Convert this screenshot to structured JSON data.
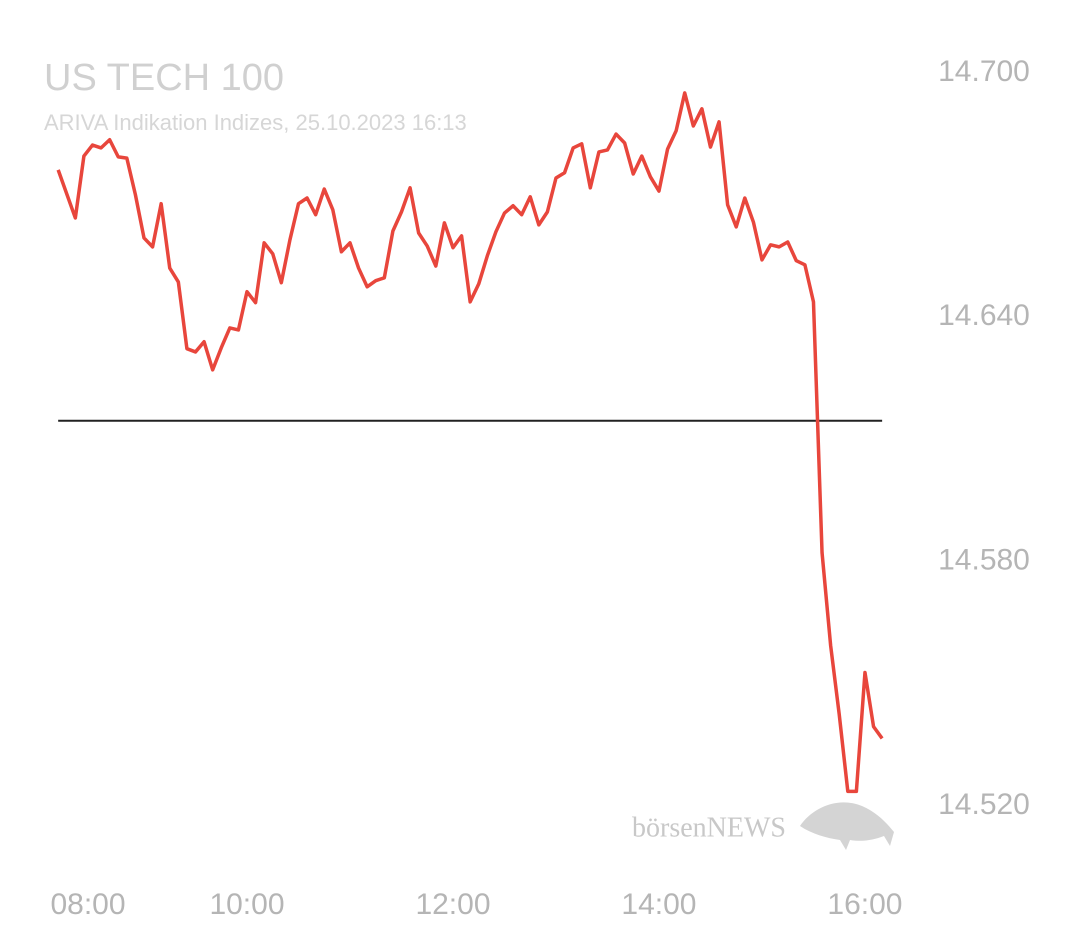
{
  "chart_data": {
    "type": "line",
    "title": "US TECH 100",
    "subtitle": "ARIVA Indikation Indizes, 25.10.2023 16:13",
    "watermark": "börsenNEWS",
    "x": [
      490,
      500,
      505,
      510,
      515,
      520,
      525,
      530,
      535,
      540,
      545,
      550,
      555,
      560,
      565,
      570,
      575,
      580,
      585,
      590,
      595,
      600,
      605,
      610,
      615,
      620,
      625,
      630,
      635,
      640,
      645,
      650,
      655,
      660,
      665,
      670,
      675,
      680,
      685,
      690,
      695,
      700,
      705,
      710,
      715,
      720,
      725,
      730,
      735,
      740,
      745,
      750,
      755,
      760,
      765,
      770,
      775,
      780,
      785,
      790,
      795,
      800,
      805,
      810,
      815,
      820,
      825,
      830,
      835,
      840,
      845,
      850,
      855,
      860,
      865,
      870,
      875,
      880,
      885,
      890,
      895,
      900,
      905,
      910,
      915,
      920,
      925,
      930,
      935,
      940,
      945,
      950,
      955,
      960,
      965,
      970
    ],
    "series": [
      {
        "name": "US TECH 100",
        "color": "#e8463c",
        "values": [
          14676.2,
          14664.4,
          14679.6,
          14682.3,
          14681.6,
          14683.6,
          14679.4,
          14679.1,
          14670.1,
          14659.5,
          14657.3,
          14667.9,
          14652.1,
          14648.7,
          14632.3,
          14631.5,
          14634.0,
          14627.1,
          14632.5,
          14637.4,
          14636.9,
          14646.3,
          14643.6,
          14658.3,
          14655.6,
          14648.5,
          14659.0,
          14667.9,
          14669.3,
          14665.2,
          14671.5,
          14666.4,
          14656.1,
          14658.3,
          14652.1,
          14647.5,
          14649.0,
          14649.7,
          14661.2,
          14665.9,
          14671.8,
          14660.7,
          14657.5,
          14652.6,
          14663.2,
          14657.1,
          14660.0,
          14643.8,
          14648.2,
          14655.1,
          14661.0,
          14665.6,
          14667.4,
          14665.2,
          14669.6,
          14662.7,
          14665.9,
          14674.2,
          14675.5,
          14681.6,
          14682.6,
          14671.8,
          14680.6,
          14681.1,
          14685.0,
          14682.8,
          14675.2,
          14679.6,
          14674.5,
          14671.0,
          14681.3,
          14685.8,
          14695.1,
          14687.0,
          14691.2,
          14681.8,
          14688.0,
          14667.6,
          14662.2,
          14669.3,
          14663.4,
          14654.1,
          14657.8,
          14657.3,
          14658.5,
          14653.9,
          14652.9,
          14643.8,
          14582.2,
          14559.4,
          14542.5,
          14523.6,
          14523.6,
          14552.8,
          14539.5,
          14536.6
        ]
      }
    ],
    "reference": 14614.6,
    "reference_color": "#222222",
    "xlim": [
      480,
      980
    ],
    "xticks": [
      {
        "value": 480,
        "label": "08:00"
      },
      {
        "value": 600,
        "label": "10:00"
      },
      {
        "value": 720,
        "label": "12:00"
      },
      {
        "value": 840,
        "label": "14:00"
      },
      {
        "value": 960,
        "label": "16:00"
      }
    ],
    "ylim": [
      14510,
      14710
    ],
    "yticks": [
      {
        "value": 14520,
        "label": "14.520"
      },
      {
        "value": 14580,
        "label": "14.580"
      },
      {
        "value": 14640,
        "label": "14.640"
      },
      {
        "value": 14700,
        "label": "14.700"
      }
    ],
    "grid": false
  }
}
